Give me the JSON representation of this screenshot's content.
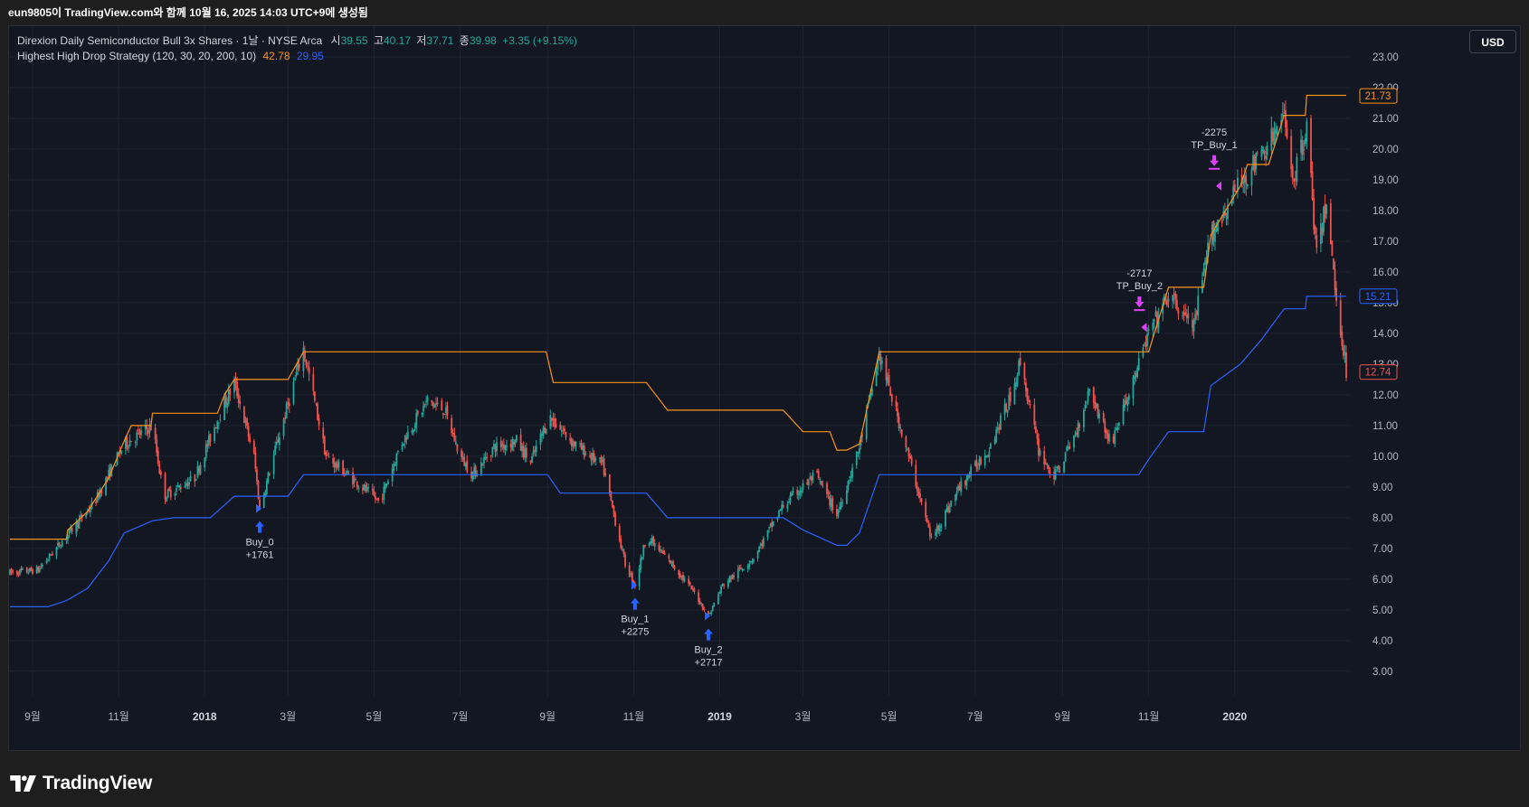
{
  "header": {
    "caption": "eun9805이 TradingView.com와 함께 10월 16, 2025 14:03 UTC+9에 생성됨"
  },
  "legend": {
    "symbol": "Direxion Daily Semiconductor Bull 3x Shares · 1날 · NYSE Arca",
    "open_label": "시",
    "open": "39.55",
    "high_label": "고",
    "high": "40.17",
    "low_label": "저",
    "low": "37.71",
    "close_label": "종",
    "close": "39.98",
    "change": "+3.35 (+9.15%)",
    "strategy": "Highest High Drop Strategy (120, 30, 20, 200, 10)",
    "strategy_val1": "42.78",
    "strategy_val2": "29.95"
  },
  "toolbar": {
    "currency_label": "USD"
  },
  "brand": {
    "name": "TradingView"
  },
  "colors": {
    "background": "#131722",
    "grid": "#1f2330",
    "up": "#26a69a",
    "down": "#ef5350",
    "highest_line": "#f7931a",
    "drop_line": "#2962ff",
    "buy_marker": "#2962ff",
    "sell_marker": "#e040fb",
    "axis_text": "#b2b5be"
  },
  "chart_data": {
    "type": "candlestick",
    "price_scale": {
      "ticks": [
        3,
        4,
        5,
        6,
        7,
        8,
        9,
        10,
        11,
        12,
        13,
        14,
        15,
        16,
        17,
        18,
        19,
        20,
        21,
        22,
        23
      ],
      "tick_labels": [
        "3.00",
        "4.00",
        "5.00",
        "6.00",
        "7.00",
        "8.00",
        "9.00",
        "10.00",
        "11.00",
        "12.00",
        "13.00",
        "14.00",
        "15.00",
        "16.00",
        "17.00",
        "18.00",
        "19.00",
        "20.00",
        "21.00",
        "22.00",
        "23.00"
      ],
      "range": [
        2.2,
        24.0
      ],
      "current_labels": [
        {
          "value": 21.73,
          "text": "21.73",
          "color": "#f7931a"
        },
        {
          "value": 15.21,
          "text": "15.21",
          "color": "#2962ff"
        },
        {
          "value": 12.74,
          "text": "12.74",
          "color": "#ef5350"
        }
      ]
    },
    "time_scale": {
      "start": "2017-08-16",
      "end": "2020-03-20",
      "labels": [
        {
          "date": "2017-09-01",
          "text": "9월",
          "bold": false
        },
        {
          "date": "2017-11-01",
          "text": "11월",
          "bold": false
        },
        {
          "date": "2018-01-01",
          "text": "2018",
          "bold": true
        },
        {
          "date": "2018-03-01",
          "text": "3월",
          "bold": false
        },
        {
          "date": "2018-05-01",
          "text": "5월",
          "bold": false
        },
        {
          "date": "2018-07-01",
          "text": "7월",
          "bold": false
        },
        {
          "date": "2018-09-01",
          "text": "9월",
          "bold": false
        },
        {
          "date": "2018-11-01",
          "text": "11월",
          "bold": false
        },
        {
          "date": "2019-01-01",
          "text": "2019",
          "bold": true
        },
        {
          "date": "2019-03-01",
          "text": "3월",
          "bold": false
        },
        {
          "date": "2019-05-01",
          "text": "5월",
          "bold": false
        },
        {
          "date": "2019-07-01",
          "text": "7월",
          "bold": false
        },
        {
          "date": "2019-09-01",
          "text": "9월",
          "bold": false
        },
        {
          "date": "2019-11-01",
          "text": "11월",
          "bold": false
        },
        {
          "date": "2020-01-01",
          "text": "2020",
          "bold": true
        }
      ]
    },
    "price_path": [
      [
        "2017-08-16",
        6.2
      ],
      [
        "2017-09-05",
        6.3
      ],
      [
        "2017-09-25",
        7.4
      ],
      [
        "2017-10-15",
        8.5
      ],
      [
        "2017-11-05",
        10.4
      ],
      [
        "2017-11-25",
        11.0
      ],
      [
        "2017-12-03",
        8.7
      ],
      [
        "2017-12-25",
        9.3
      ],
      [
        "2018-01-10",
        11.2
      ],
      [
        "2018-01-22",
        12.4
      ],
      [
        "2018-02-05",
        10.0
      ],
      [
        "2018-02-09",
        8.3
      ],
      [
        "2018-02-20",
        10.2
      ],
      [
        "2018-03-12",
        13.5
      ],
      [
        "2018-03-28",
        10.0
      ],
      [
        "2018-04-20",
        9.1
      ],
      [
        "2018-05-05",
        8.5
      ],
      [
        "2018-05-20",
        10.4
      ],
      [
        "2018-06-08",
        11.8
      ],
      [
        "2018-06-20",
        11.5
      ],
      [
        "2018-07-01",
        10.0
      ],
      [
        "2018-07-10",
        9.4
      ],
      [
        "2018-07-25",
        10.3
      ],
      [
        "2018-08-10",
        10.5
      ],
      [
        "2018-08-20",
        9.8
      ],
      [
        "2018-09-02",
        11.3
      ],
      [
        "2018-09-20",
        10.4
      ],
      [
        "2018-10-10",
        9.7
      ],
      [
        "2018-10-26",
        6.5
      ],
      [
        "2018-11-02",
        5.8
      ],
      [
        "2018-11-10",
        7.4
      ],
      [
        "2018-11-28",
        6.5
      ],
      [
        "2018-12-15",
        5.5
      ],
      [
        "2018-12-24",
        4.8
      ],
      [
        "2019-01-03",
        5.8
      ],
      [
        "2019-01-25",
        6.7
      ],
      [
        "2019-02-15",
        8.4
      ],
      [
        "2019-03-10",
        9.4
      ],
      [
        "2019-03-25",
        8.1
      ],
      [
        "2019-04-10",
        10.3
      ],
      [
        "2019-04-24",
        13.3
      ],
      [
        "2019-05-10",
        10.8
      ],
      [
        "2019-05-31",
        7.3
      ],
      [
        "2019-06-20",
        9.0
      ],
      [
        "2019-07-10",
        10.2
      ],
      [
        "2019-07-25",
        11.8
      ],
      [
        "2019-08-02",
        13.1
      ],
      [
        "2019-08-15",
        10.2
      ],
      [
        "2019-08-26",
        9.3
      ],
      [
        "2019-09-10",
        10.7
      ],
      [
        "2019-09-20",
        12.2
      ],
      [
        "2019-10-05",
        10.4
      ],
      [
        "2019-10-20",
        12.3
      ],
      [
        "2019-11-01",
        14.0
      ],
      [
        "2019-11-15",
        15.2
      ],
      [
        "2019-12-03",
        14.2
      ],
      [
        "2019-12-15",
        17.2
      ],
      [
        "2020-01-05",
        18.9
      ],
      [
        "2020-01-20",
        19.8
      ],
      [
        "2020-02-05",
        21.0
      ],
      [
        "2020-02-12",
        19.0
      ],
      [
        "2020-02-21",
        20.8
      ],
      [
        "2020-02-28",
        16.5
      ],
      [
        "2020-03-06",
        18.3
      ],
      [
        "2020-03-12",
        15.5
      ],
      [
        "2020-03-20",
        12.8
      ]
    ],
    "highest_high_line": [
      [
        "2017-08-16",
        7.3
      ],
      [
        "2017-09-25",
        7.3
      ],
      [
        "2017-09-26",
        7.6
      ],
      [
        "2017-10-10",
        8.2
      ],
      [
        "2017-10-25",
        9.3
      ],
      [
        "2017-11-05",
        10.5
      ],
      [
        "2017-11-10",
        11.0
      ],
      [
        "2017-11-24",
        11.0
      ],
      [
        "2017-11-25",
        11.4
      ],
      [
        "2018-01-10",
        11.4
      ],
      [
        "2018-01-15",
        12.0
      ],
      [
        "2018-01-22",
        12.5
      ],
      [
        "2018-03-01",
        12.5
      ],
      [
        "2018-03-12",
        13.4
      ],
      [
        "2018-08-31",
        13.4
      ],
      [
        "2018-09-05",
        12.4
      ],
      [
        "2018-11-10",
        12.4
      ],
      [
        "2018-11-25",
        11.5
      ],
      [
        "2019-02-15",
        11.5
      ],
      [
        "2019-03-01",
        10.8
      ],
      [
        "2019-03-20",
        10.8
      ],
      [
        "2019-03-25",
        10.2
      ],
      [
        "2019-04-01",
        10.2
      ],
      [
        "2019-04-10",
        10.4
      ],
      [
        "2019-04-24",
        13.4
      ],
      [
        "2019-11-01",
        13.4
      ],
      [
        "2019-11-15",
        15.5
      ],
      [
        "2019-12-10",
        15.5
      ],
      [
        "2019-12-15",
        17.2
      ],
      [
        "2020-01-05",
        18.8
      ],
      [
        "2020-01-10",
        19.5
      ],
      [
        "2020-01-25",
        19.5
      ],
      [
        "2020-02-05",
        21.1
      ],
      [
        "2020-02-20",
        21.1
      ],
      [
        "2020-02-21",
        21.75
      ],
      [
        "2020-03-20",
        21.75
      ]
    ],
    "drop_line": [
      [
        "2017-08-16",
        5.1
      ],
      [
        "2017-09-12",
        5.1
      ],
      [
        "2017-09-25",
        5.3
      ],
      [
        "2017-10-10",
        5.7
      ],
      [
        "2017-10-25",
        6.6
      ],
      [
        "2017-11-05",
        7.5
      ],
      [
        "2017-11-25",
        7.9
      ],
      [
        "2017-12-10",
        8.0
      ],
      [
        "2018-01-05",
        8.0
      ],
      [
        "2018-01-22",
        8.7
      ],
      [
        "2018-03-01",
        8.7
      ],
      [
        "2018-03-12",
        9.4
      ],
      [
        "2018-09-01",
        9.4
      ],
      [
        "2018-09-10",
        8.8
      ],
      [
        "2018-11-10",
        8.8
      ],
      [
        "2018-11-25",
        8.0
      ],
      [
        "2019-02-15",
        8.0
      ],
      [
        "2019-03-01",
        7.6
      ],
      [
        "2019-03-25",
        7.1
      ],
      [
        "2019-04-01",
        7.1
      ],
      [
        "2019-04-10",
        7.5
      ],
      [
        "2019-04-24",
        9.4
      ],
      [
        "2019-10-25",
        9.4
      ],
      [
        "2019-11-01",
        9.9
      ],
      [
        "2019-11-15",
        10.8
      ],
      [
        "2019-12-10",
        10.8
      ],
      [
        "2019-12-15",
        12.3
      ],
      [
        "2020-01-05",
        13.0
      ],
      [
        "2020-01-20",
        13.8
      ],
      [
        "2020-02-05",
        14.8
      ],
      [
        "2020-02-20",
        14.8
      ],
      [
        "2020-02-21",
        15.21
      ],
      [
        "2020-03-20",
        15.21
      ]
    ],
    "signals": [
      {
        "type": "buy",
        "date": "2018-02-09",
        "price": 8.3,
        "label": "Buy_0",
        "qty": "+1761"
      },
      {
        "type": "buy",
        "date": "2018-11-02",
        "price": 5.8,
        "label": "Buy_1",
        "qty": "+2275"
      },
      {
        "type": "buy",
        "date": "2018-12-24",
        "price": 4.8,
        "label": "Buy_2",
        "qty": "+2717"
      },
      {
        "type": "sell",
        "date": "2019-10-28",
        "price": 14.2,
        "label": "TP_Buy_2",
        "qty": "-2717"
      },
      {
        "type": "sell",
        "date": "2019-12-20",
        "price": 18.8,
        "label": "TP_Buy_1",
        "qty": "-2275"
      }
    ]
  }
}
